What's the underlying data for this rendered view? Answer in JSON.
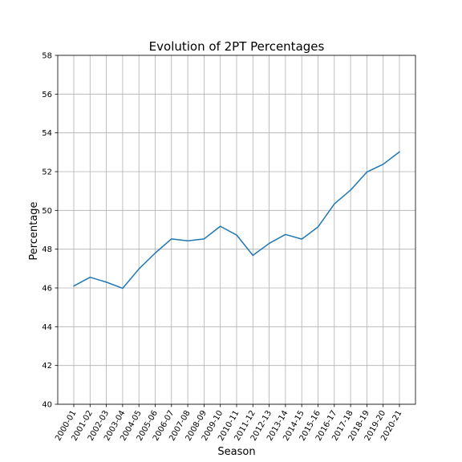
{
  "chart_data": {
    "type": "line",
    "title": "Evolution of 2PT Percentages",
    "xlabel": "Season",
    "ylabel": "Percentage",
    "categories": [
      "2000-01",
      "2001-02",
      "2002-03",
      "2003-04",
      "2004-05",
      "2005-06",
      "2006-07",
      "2007-08",
      "2008-09",
      "2009-10",
      "2010-11",
      "2011-12",
      "2012-13",
      "2013-14",
      "2014-15",
      "2015-16",
      "2016-17",
      "2017-18",
      "2018-19",
      "2019-20",
      "2020-21"
    ],
    "series": [
      {
        "values": [
          46.1,
          46.55,
          46.3,
          45.98,
          46.98,
          47.8,
          48.53,
          48.43,
          48.53,
          49.18,
          48.73,
          47.68,
          48.3,
          48.76,
          48.52,
          49.15,
          50.33,
          51.05,
          51.98,
          52.38,
          53.02
        ],
        "color": "#1f77b4"
      }
    ],
    "ylim": [
      40,
      58
    ],
    "yticks": [
      40,
      42,
      44,
      46,
      48,
      50,
      52,
      54,
      56,
      58
    ],
    "grid": true
  }
}
